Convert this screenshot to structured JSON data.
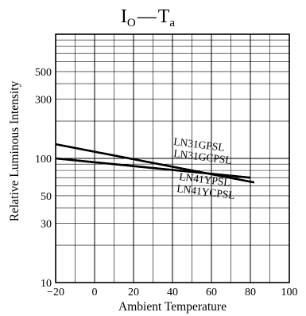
{
  "chart_data": {
    "type": "line",
    "title": {
      "left_main": "I",
      "left_sub": "O",
      "dash": "—",
      "right_main": "T",
      "right_sub": "a"
    },
    "xlabel": "Ambient Temperature",
    "ylabel": "Relative Luminous Intensity",
    "xlim": [
      -20,
      100
    ],
    "ylim": [
      10,
      1000
    ],
    "yscale": "log",
    "grid": true,
    "x_ticks": [
      -20,
      0,
      20,
      40,
      60,
      80,
      100
    ],
    "x_tick_labels": [
      "−20",
      "0",
      "20",
      "40",
      "60",
      "80",
      "100"
    ],
    "y_tick_labels": [
      {
        "value": 10,
        "label": "10"
      },
      {
        "value": 30,
        "label": "30"
      },
      {
        "value": 50,
        "label": "50"
      },
      {
        "value": 100,
        "label": "100"
      },
      {
        "value": 300,
        "label": "300"
      },
      {
        "value": 500,
        "label": "500"
      }
    ],
    "series": [
      {
        "name": "LN31GPSL",
        "x": [
          -20,
          80
        ],
        "y": [
          100,
          70
        ]
      },
      {
        "name": "LN31GCPSL",
        "x": [
          -20,
          80
        ],
        "y": [
          100,
          70
        ]
      },
      {
        "name": "LN41YPSL",
        "x": [
          -20,
          82
        ],
        "y": [
          130,
          64
        ]
      },
      {
        "name": "LN41YCPSL",
        "x": [
          -20,
          82
        ],
        "y": [
          130,
          64
        ]
      }
    ]
  }
}
